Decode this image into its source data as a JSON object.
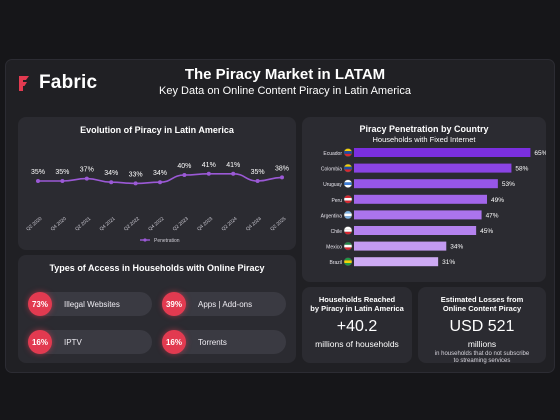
{
  "brand": {
    "name": "Fabric",
    "accent": "#e23a50"
  },
  "header": {
    "title": "The Piracy Market in LATAM",
    "subtitle": "Key Data on Online Content Piracy in Latin America"
  },
  "line_panel": {
    "title": "Evolution of Piracy in Latin America"
  },
  "access_panel": {
    "title": "Types of Access in Households with Online Piracy",
    "items": [
      {
        "pct": "73%",
        "label": "Illegal Websites"
      },
      {
        "pct": "39%",
        "label": "Apps | Add-ons"
      },
      {
        "pct": "16%",
        "label": "IPTV"
      },
      {
        "pct": "16%",
        "label": "Torrents"
      }
    ]
  },
  "country_panel": {
    "title": "Piracy Penetration by Country",
    "subtitle": "Households with Fixed Internet"
  },
  "households": {
    "head_line1": "Households Reached",
    "head_line2": "by Piracy in Latin America",
    "value": "+40.2",
    "unit": "millions of households"
  },
  "losses": {
    "head_line1": "Estimated Losses from",
    "head_line2": "Online Content Piracy",
    "value": "USD 521",
    "unit": "millions",
    "note_line1": "in households that do not subscribe",
    "note_line2": "to streaming services"
  },
  "chart_data": [
    {
      "type": "line",
      "title": "Evolution of Piracy in Latin America",
      "x": [
        "Q2 2020",
        "Q4 2020",
        "Q2 2021",
        "Q4 2021",
        "Q2 2022",
        "Q4 2022",
        "Q2 2023",
        "Q4 2023",
        "Q2 2024",
        "Q4 2024",
        "Q2 2025"
      ],
      "series": [
        {
          "name": "Penetration",
          "values": [
            35,
            35,
            37,
            34,
            33,
            34,
            40,
            41,
            41,
            35,
            38
          ],
          "color": "#9b59d6"
        }
      ],
      "value_labels": [
        "35%",
        "35%",
        "37%",
        "34%",
        "33%",
        "34%",
        "40%",
        "41%",
        "41%",
        "35%",
        "38%"
      ],
      "ylim": [
        20,
        55
      ],
      "grid": false,
      "legend": "bottom"
    },
    {
      "type": "bar",
      "orientation": "horizontal",
      "title": "Piracy Penetration by Country",
      "subtitle": "Households with Fixed Internet",
      "categories": [
        "Ecuador",
        "Colombia",
        "Uruguay",
        "Peru",
        "Argentina",
        "Chile",
        "Mexico",
        "Brazil"
      ],
      "values": [
        65,
        58,
        53,
        49,
        47,
        45,
        34,
        31
      ],
      "value_labels": [
        "65%",
        "58%",
        "53%",
        "49%",
        "47%",
        "45%",
        "34%",
        "31%"
      ],
      "colors": [
        "#7b2fe0",
        "#8a44e4",
        "#9656e8",
        "#a266ea",
        "#ab74ec",
        "#b482ee",
        "#c39af1",
        "#cdaaf3"
      ],
      "xlim": [
        0,
        70
      ],
      "grid": false
    }
  ]
}
